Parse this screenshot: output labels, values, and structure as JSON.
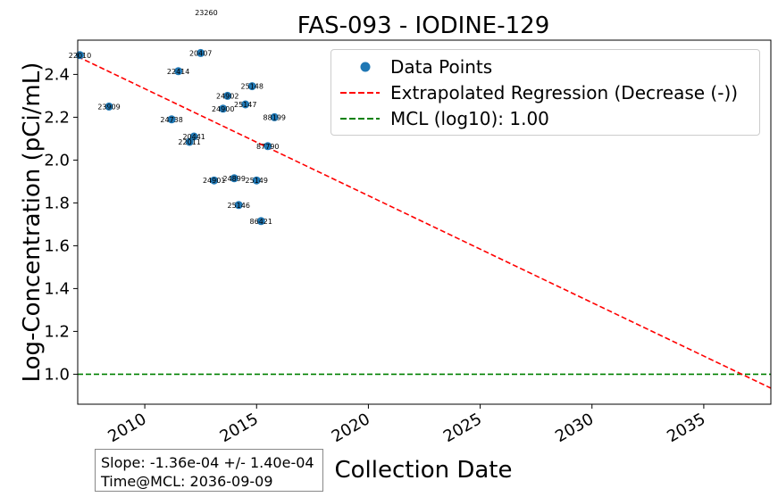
{
  "chart_data": {
    "type": "scatter",
    "title": "FAS-093 - IODINE-129",
    "xlabel": "Collection Date",
    "ylabel": "Log-Concentration (pCi/mL)",
    "xlim": [
      2007.0,
      2038.0
    ],
    "ylim": [
      0.86,
      2.56
    ],
    "xticks": [
      2010,
      2015,
      2020,
      2025,
      2030,
      2035
    ],
    "yticks": [
      1.0,
      1.2,
      1.4,
      1.6,
      1.8,
      2.0,
      2.2,
      2.4
    ],
    "ytick_labels": [
      "1.0",
      "1.2",
      "1.4",
      "1.6",
      "1.8",
      "2.0",
      "2.2",
      "2.4"
    ],
    "grid": false,
    "legend_position": "top-right",
    "series": [
      {
        "name": "Data Points",
        "color": "#1f77b4",
        "points": [
          {
            "x": 2007.1,
            "y": 2.49,
            "label": "22010"
          },
          {
            "x": 2008.4,
            "y": 2.25,
            "label": "23909"
          },
          {
            "x": 2011.2,
            "y": 2.19,
            "label": "24738"
          },
          {
            "x": 2011.5,
            "y": 2.415,
            "label": "22414"
          },
          {
            "x": 2012.0,
            "y": 2.085,
            "label": "22011"
          },
          {
            "x": 2012.2,
            "y": 2.11,
            "label": "20441"
          },
          {
            "x": 2012.5,
            "y": 2.5,
            "label": "20407"
          },
          {
            "x": 2013.1,
            "y": 1.905,
            "label": "24901"
          },
          {
            "x": 2013.5,
            "y": 2.24,
            "label": "24900"
          },
          {
            "x": 2013.7,
            "y": 2.3,
            "label": "24902"
          },
          {
            "x": 2014.0,
            "y": 1.915,
            "label": "24899"
          },
          {
            "x": 2014.2,
            "y": 1.79,
            "label": "25146"
          },
          {
            "x": 2014.5,
            "y": 2.26,
            "label": "25147"
          },
          {
            "x": 2014.8,
            "y": 2.345,
            "label": "25148"
          },
          {
            "x": 2015.0,
            "y": 1.905,
            "label": "25149"
          },
          {
            "x": 2015.2,
            "y": 1.715,
            "label": "86421"
          },
          {
            "x": 2015.5,
            "y": 2.065,
            "label": "87790"
          },
          {
            "x": 2015.8,
            "y": 2.2,
            "label": "88199"
          }
        ],
        "outside_label": {
          "x": 2012.75,
          "y": 2.62,
          "label": "23260"
        }
      },
      {
        "name": "Extrapolated Regression (Decrease (-))",
        "color": "#ff0000",
        "style": "dashed",
        "x": [
          2007.0,
          2038.0
        ],
        "y": [
          2.483,
          0.935
        ]
      },
      {
        "name": "MCL (log10): 1.00",
        "color": "#008000",
        "style": "dashed",
        "y_constant": 1.0
      }
    ],
    "annotation": {
      "slope_text": "Slope: -1.36e-04 +/- 1.40e-04",
      "time_text": "Time@MCL: 2036-09-09"
    }
  }
}
